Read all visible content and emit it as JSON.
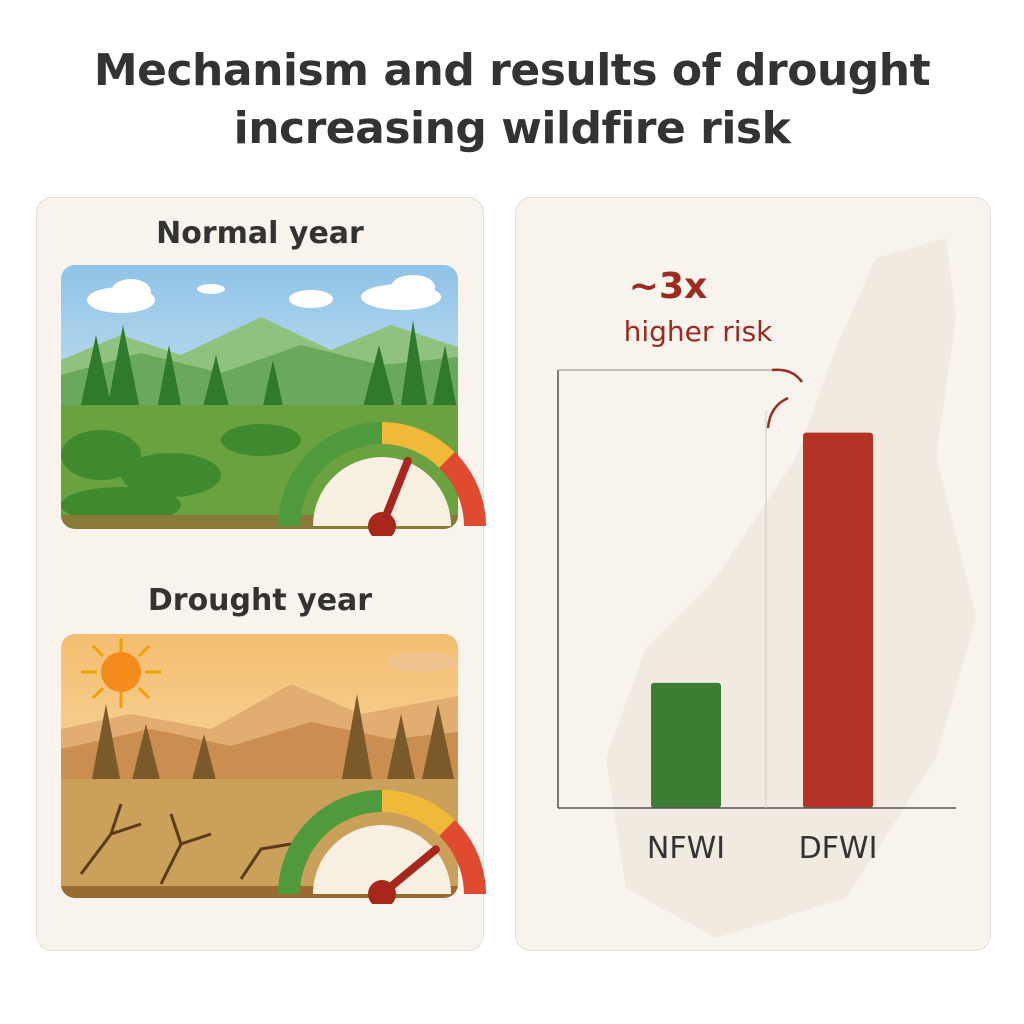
{
  "title_line1": "Mechanism and results of drought",
  "title_line2": "increasing wildfire risk",
  "panels": {
    "normal": {
      "label": "Normal year",
      "gauge_level": 0.62,
      "colors": {
        "sky_top": "#8fc3e8",
        "sky_bottom": "#e9f5f8",
        "mountain": "#7fb872",
        "forest": "#3f8a36",
        "ground": "#5e9a3a"
      }
    },
    "drought": {
      "label": "Drought year",
      "gauge_level": 0.78,
      "colors": {
        "sky_top": "#f2b35a",
        "sky_bottom": "#f8e2b8",
        "mountain": "#d9a060",
        "forest": "#8a6a32",
        "ground": "#c89440"
      }
    }
  },
  "annotation": {
    "multiplier": "~3x",
    "text": "higher risk",
    "color": "#9b2b20"
  },
  "chart_data": {
    "type": "bar",
    "categories": [
      "NFWI",
      "DFWI"
    ],
    "values": [
      1,
      3
    ],
    "colors": [
      "#3b7d32",
      "#b53227"
    ],
    "ylim": [
      0,
      3.5
    ],
    "title": "",
    "xlabel": "",
    "ylabel": "",
    "grid": false,
    "annotation": "~3x higher risk"
  }
}
